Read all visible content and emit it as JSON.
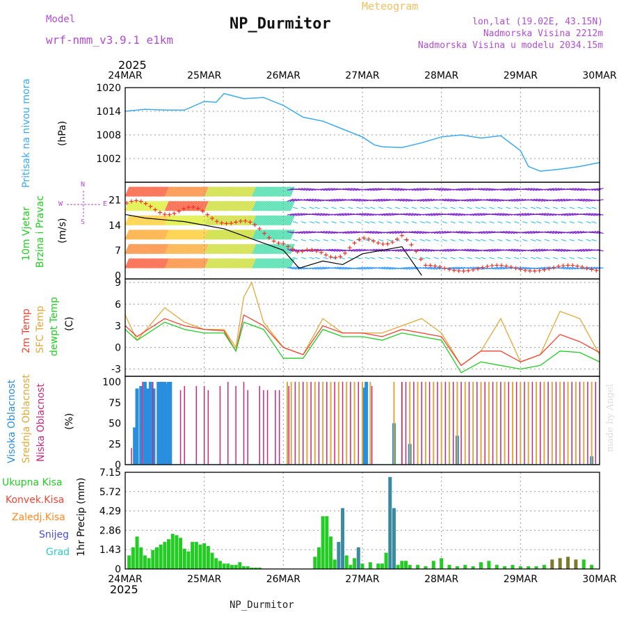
{
  "header": {
    "model_label": "Model",
    "model_name": "wrf-nmm_v3.9.1  e1km",
    "title": "NP_Durmitor",
    "meteogram_label": "Meteogram",
    "lonlat": "lon,lat (19.02E, 43.15N)",
    "altitude": "Nadmorska Visina 2212m",
    "model_altitude": "Nadmorska Visina u modelu 2034.15m",
    "year": "2025",
    "footer_title": "NP_Durmitor",
    "signature": "made by Angel"
  },
  "colors": {
    "pressure": "#3aaaea",
    "temp2m": "#ee4433",
    "sfc_temp": "#e2a838",
    "dewpt": "#22cc22",
    "high_cloud": "#2a8ee0",
    "mid_cloud": "#dcaa3a",
    "low_cloud": "#c8287a",
    "total_precip": "#22cc22",
    "conv_precip": "#ee4433",
    "snow": "#4a4ae0",
    "graupel": "#30c8c8",
    "frozen": "#ff8822",
    "wind_purple": "#7a22cc"
  },
  "x_axis": {
    "ticks": [
      "24MAR",
      "25MAR",
      "26MAR",
      "27MAR",
      "28MAR",
      "29MAR",
      "30MAR"
    ],
    "year": "2025"
  },
  "panels": {
    "pressure": {
      "label": "Pritisak na nivou mora",
      "unit": "(hPa)",
      "ticks": [
        "1020",
        "1014",
        "1008",
        "1002"
      ]
    },
    "wind": {
      "label1": "10m Vjetar",
      "label2": "Brzina i Pravac",
      "unit": "(m/s)",
      "ticks": [
        "21",
        "14",
        "7",
        "0"
      ],
      "compass_n": "N",
      "compass_w": "W",
      "compass_e": "E",
      "compass_s": "S"
    },
    "temp": {
      "label1": "2m Temp",
      "label2": "SFC Temp",
      "label3": "dewpt Temp",
      "unit": "(C)",
      "ticks": [
        "9",
        "6",
        "3",
        "0",
        "-3"
      ]
    },
    "cloud": {
      "label1": "Visoka Oblacnost",
      "label2": "Srednja Oblacnost",
      "label3": "Niska Oblacnost",
      "unit": "(%)",
      "ticks": [
        "100",
        "75",
        "50",
        "25",
        "0"
      ]
    },
    "precip": {
      "unit": "1hr Precip (mm)",
      "ticks": [
        "7.15",
        "5.72",
        "4.29",
        "2.86",
        "1.43",
        "0"
      ],
      "legend": [
        "Ukupna Kisa",
        "Konvek.Kisa",
        "Zaledj.Kisa",
        "Snijeg",
        "Grad"
      ]
    }
  },
  "chart_data": [
    {
      "type": "line",
      "title": "Pritisak na nivou mora",
      "ylabel": "(hPa)",
      "ylim": [
        996,
        1020
      ],
      "x_unit": "days since 24MAR 2025 00Z",
      "xlim": [
        0,
        6
      ],
      "grid": true,
      "series": [
        {
          "name": "Pritisak na nivou mora",
          "x": [
            0,
            0.25,
            0.5,
            0.75,
            1.0,
            1.15,
            1.25,
            1.5,
            1.75,
            2.0,
            2.25,
            2.5,
            2.75,
            3.0,
            3.15,
            3.25,
            3.5,
            3.75,
            4.0,
            4.25,
            4.5,
            4.75,
            5.0,
            5.1,
            5.25,
            5.5,
            5.75,
            6.0
          ],
          "y": [
            1014,
            1014.5,
            1014.3,
            1014.3,
            1016.5,
            1016.3,
            1018.5,
            1017.2,
            1017.5,
            1015.5,
            1012.5,
            1011.5,
            1009.5,
            1007.5,
            1005.5,
            1005,
            1004.8,
            1006,
            1007.5,
            1008,
            1007.2,
            1007.8,
            1004,
            1000,
            998.8,
            999.3,
            1000,
            1001
          ]
        }
      ]
    },
    {
      "type": "line",
      "title": "10m Vjetar Brzina i Pravac",
      "ylabel": "(m/s)",
      "ylim": [
        -1,
        26
      ],
      "x_unit": "days since 24MAR 2025 00Z",
      "xlim": [
        0,
        6
      ],
      "series": [
        {
          "name": "10m Vjetar Brzina",
          "x": [
            0,
            0.25,
            0.5,
            0.75,
            1.0,
            1.25,
            1.5,
            1.75,
            2.0,
            2.2,
            2.5,
            2.75,
            3.0,
            3.25,
            3.5,
            3.75
          ],
          "y": [
            17,
            16,
            15.5,
            15,
            14,
            13,
            11,
            9,
            7,
            2,
            4,
            3,
            6,
            7,
            8,
            0
          ]
        }
      ]
    },
    {
      "type": "line",
      "title": "2m Temp / SFC Temp / dewpt Temp",
      "ylabel": "(C)",
      "ylim": [
        -4,
        9.5
      ],
      "x_unit": "days since 24MAR 2025 00Z",
      "xlim": [
        0,
        6
      ],
      "grid": true,
      "series": [
        {
          "name": "2m Temp",
          "x": [
            0,
            0.15,
            0.5,
            0.75,
            1.0,
            1.25,
            1.4,
            1.5,
            1.75,
            2.0,
            2.25,
            2.5,
            2.75,
            3.0,
            3.25,
            3.5,
            3.75,
            4.0,
            4.25,
            4.5,
            4.75,
            5.0,
            5.25,
            5.5,
            5.75,
            6.0
          ],
          "y": [
            3,
            1.5,
            4,
            3,
            2.5,
            2.3,
            -0.5,
            4.5,
            3,
            0,
            -1,
            3,
            2,
            2,
            1.5,
            2.5,
            2,
            1.5,
            -2.5,
            -0.5,
            -0.5,
            -2,
            -1,
            1.8,
            0.8,
            -0.7
          ]
        },
        {
          "name": "SFC Temp",
          "x": [
            0,
            0.15,
            0.5,
            0.75,
            1.0,
            1.25,
            1.4,
            1.5,
            1.6,
            1.75,
            2.0,
            2.25,
            2.5,
            2.75,
            3.0,
            3.25,
            3.5,
            3.75,
            4.0,
            4.25,
            4.5,
            4.75,
            5.0,
            5.25,
            5.5,
            5.75,
            6.0
          ],
          "y": [
            4.5,
            1,
            5.5,
            3.5,
            2.5,
            2.5,
            0,
            7,
            9,
            3.5,
            0,
            -1,
            4,
            2,
            2,
            2,
            3,
            4,
            2,
            -2.5,
            -0.5,
            4,
            -2,
            -1,
            5,
            4,
            -1
          ]
        },
        {
          "name": "dewpt Temp",
          "x": [
            0,
            0.15,
            0.5,
            0.75,
            1.0,
            1.25,
            1.4,
            1.5,
            1.75,
            2.0,
            2.25,
            2.5,
            2.75,
            3.0,
            3.25,
            3.5,
            3.75,
            4.0,
            4.25,
            4.5,
            4.75,
            5.0,
            5.25,
            5.5,
            5.75,
            6.0
          ],
          "y": [
            2.5,
            1,
            3.5,
            2.5,
            2,
            2,
            -0.5,
            3.5,
            2.5,
            -1.5,
            -1.5,
            2.5,
            1.5,
            1.5,
            1,
            2,
            1.5,
            1,
            -3.5,
            -2,
            -2.5,
            -3,
            -2.5,
            -0.5,
            -0.7,
            -2
          ]
        }
      ]
    },
    {
      "type": "bar",
      "title": "Visoka / Srednja / Niska Oblacnost",
      "ylabel": "(%)",
      "ylim": [
        0,
        100
      ],
      "x_unit": "days since 24MAR 2025 00Z",
      "xlim": [
        0,
        6
      ],
      "series": [
        {
          "name": "Visoka Oblacnost",
          "x": [
            0.12,
            0.15,
            0.2,
            0.25,
            0.28,
            0.32,
            0.36,
            0.42,
            0.45,
            0.48,
            0.5,
            0.53,
            0.55,
            0.57,
            3.02,
            3.05,
            3.4,
            3.6,
            4.2,
            5.9
          ],
          "y": [
            45,
            92,
            95,
            100,
            92,
            100,
            92,
            100,
            100,
            100,
            100,
            98,
            100,
            100,
            93,
            100,
            50,
            25,
            35,
            10
          ]
        },
        {
          "name": "Srednja Oblacnost",
          "x": [
            2.05,
            2.1,
            2.2,
            2.3,
            2.4,
            2.5,
            2.6,
            2.7,
            2.8,
            2.9,
            3.0,
            3.1,
            3.4,
            3.5,
            3.6,
            3.7,
            3.8,
            3.9,
            4.0,
            4.1,
            4.2,
            4.3,
            4.4,
            4.5,
            4.6,
            4.7,
            4.8,
            4.9,
            5.0,
            5.1,
            5.2,
            5.3,
            5.4,
            5.5,
            5.6,
            5.7,
            5.8,
            5.9
          ],
          "y": [
            100,
            100,
            100,
            100,
            100,
            100,
            100,
            100,
            100,
            100,
            100,
            100,
            100,
            100,
            100,
            100,
            100,
            100,
            100,
            100,
            100,
            100,
            100,
            100,
            100,
            100,
            100,
            100,
            100,
            100,
            100,
            100,
            100,
            100,
            100,
            100,
            100,
            100
          ]
        },
        {
          "name": "Niska Oblacnost",
          "x": [
            0.08,
            0.22,
            0.35,
            0.7,
            0.75,
            0.9,
            1.0,
            1.05,
            1.2,
            1.3,
            1.4,
            1.5,
            1.55,
            1.7,
            1.75,
            1.8,
            1.9,
            1.95,
            2.07,
            2.15,
            2.25,
            2.35,
            2.45,
            2.55,
            2.65,
            2.75,
            2.85,
            2.95,
            3.12,
            3.5,
            3.55,
            3.65,
            3.75,
            3.85,
            3.95,
            4.05,
            4.15,
            4.25,
            4.35,
            4.45,
            4.55,
            4.65,
            4.75,
            4.85,
            4.95,
            5.05,
            5.15,
            5.25,
            5.35,
            5.45,
            5.55,
            5.65,
            5.75,
            5.85,
            5.95
          ],
          "y": [
            20,
            100,
            100,
            90,
            95,
            95,
            95,
            90,
            95,
            100,
            95,
            100,
            90,
            95,
            90,
            90,
            90,
            90,
            95,
            100,
            100,
            100,
            100,
            100,
            100,
            100,
            100,
            100,
            95,
            100,
            100,
            100,
            100,
            100,
            100,
            100,
            100,
            100,
            100,
            100,
            100,
            100,
            100,
            100,
            100,
            100,
            100,
            100,
            100,
            100,
            100,
            100,
            100,
            100,
            100
          ]
        }
      ]
    },
    {
      "type": "bar",
      "title": "1hr Precip (mm)",
      "ylabel": "1hr Precip (mm)",
      "ylim": [
        0,
        7.15
      ],
      "x_unit": "days since 24MAR 2025 00Z",
      "xlim": [
        0,
        6
      ],
      "series": [
        {
          "name": "Ukupna Kisa",
          "x": [
            0.05,
            0.1,
            0.15,
            0.2,
            0.25,
            0.3,
            0.35,
            0.4,
            0.45,
            0.5,
            0.55,
            0.6,
            0.65,
            0.7,
            0.75,
            0.8,
            0.85,
            0.9,
            0.95,
            1.0,
            1.05,
            1.1,
            1.15,
            1.2,
            1.25,
            1.3,
            1.35,
            1.4,
            1.45,
            1.5,
            1.55,
            1.6,
            1.65,
            1.7,
            2.4,
            2.45,
            2.5,
            2.55,
            2.6,
            2.65,
            2.7,
            2.75,
            2.8,
            2.85,
            2.9,
            2.95,
            3.0,
            3.1,
            3.2,
            3.25,
            3.3,
            3.35,
            3.4,
            3.45,
            3.5,
            3.55,
            3.6,
            3.7,
            3.8,
            3.9,
            4.0,
            4.1,
            4.2,
            4.3,
            4.4,
            4.5,
            4.6,
            4.7,
            4.8,
            4.9,
            5.0,
            5.1,
            5.2,
            5.3,
            5.4,
            5.5,
            5.6,
            5.7,
            5.8,
            5.9
          ],
          "y": [
            1.0,
            1.6,
            2.4,
            1.6,
            1.0,
            0.8,
            1.4,
            1.6,
            1.8,
            2.0,
            2.2,
            2.6,
            2.5,
            2.3,
            1.5,
            1.3,
            2.0,
            2.0,
            1.8,
            1.9,
            1.7,
            1.2,
            0.8,
            0.6,
            0.4,
            0.4,
            0.3,
            0.3,
            0.5,
            0.2,
            0.2,
            0.1,
            0.1,
            0.1,
            0.9,
            1.6,
            3.9,
            3.9,
            2.4,
            0.7,
            2.0,
            4.5,
            1.0,
            0.3,
            0.8,
            1.6,
            0.4,
            0.5,
            0.4,
            0.4,
            1.2,
            6.8,
            4.5,
            0.3,
            0.6,
            0.6,
            0.3,
            0.3,
            0.2,
            0.6,
            0.8,
            0.3,
            0.2,
            0.3,
            0.2,
            0.5,
            0.6,
            0.3,
            0.2,
            0.3,
            0.2,
            0.2,
            0.2,
            0.3,
            0.7,
            0.8,
            0.9,
            0.7,
            0.7,
            0.3
          ]
        }
      ]
    }
  ]
}
